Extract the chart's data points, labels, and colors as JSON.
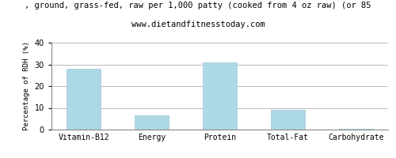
{
  "title_line1": ", ground, grass-fed, raw per 1,000 patty (cooked from 4 oz raw) (or 85",
  "title_line2": "www.dietandfitnesstoday.com",
  "categories": [
    "Vitamin-B12",
    "Energy",
    "Protein",
    "Total-Fat",
    "Carbohydrate"
  ],
  "values": [
    28,
    6.5,
    31,
    9,
    0.2
  ],
  "bar_color": "#add8e6",
  "bar_edge_color": "#a0c8d8",
  "ylabel": "Percentage of RDH (%)",
  "ylim": [
    0,
    40
  ],
  "yticks": [
    0,
    10,
    20,
    30,
    40
  ],
  "background_color": "#ffffff",
  "grid_color": "#bbbbbb",
  "title_fontsize": 7.5,
  "subtitle_fontsize": 7.5,
  "axis_label_fontsize": 6.5,
  "tick_fontsize": 7.0
}
